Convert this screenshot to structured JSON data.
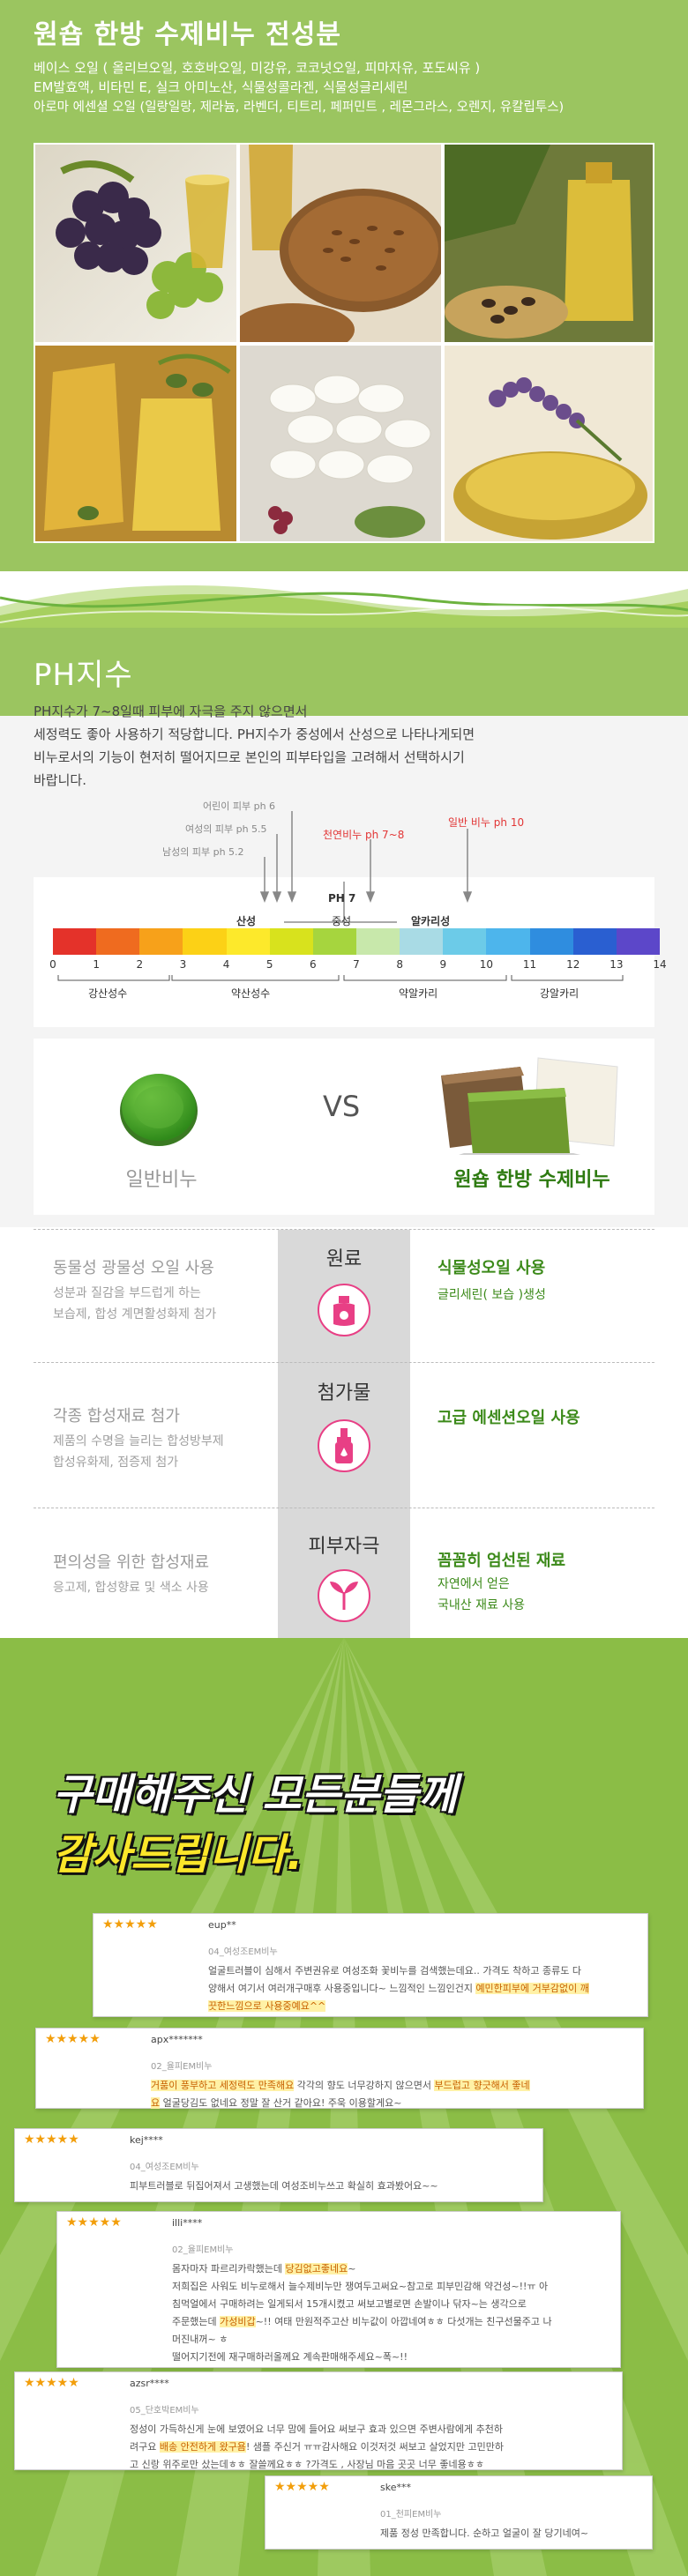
{
  "ingredients": {
    "title": "원숍 한방 수제비누 전성분",
    "lines": [
      "베이스 오일 ( 올리브오일, 호호바오일, 미강유, 코코넛오일, 피마자유,  포도씨유 )",
      "EM발효액, 비타민 E, 실크 아미노산, 식물성콜라겐, 식물성글리세린",
      "아로마 에센셜 오일 (일랑일랑, 제라늄, 라벤더, 티트리, 페퍼민트 , 레몬그라스, 오렌지, 유칼립투스)"
    ],
    "photos": [
      "grape-oil-photo",
      "flaxseed-oil-photo",
      "castor-oil-photo",
      "olive-oil-photo",
      "silk-cocoon-photo",
      "lavender-oil-photo"
    ]
  },
  "ph": {
    "title": "PH지수",
    "desc": [
      "PH지수가 7~8일때 피부에 자극을 주지 않으면서",
      "세정력도 좋아 사용하기 적당합니다. PH지수가 중성에서 산성으로 나타나게되면",
      "비누로서의 기능이 현저히 떨어지므로  본인의 피부타입을 고려해서 선택하시기",
      "바랍니다."
    ],
    "markers": {
      "child": "어린이 피부 ph 6",
      "female": "여성의 피부 ph 5.5",
      "male": "남성의 피부 ph 5.2",
      "natural": "천연비누 ph 7~8",
      "general": "일반 비누 ph 10"
    },
    "scale_labels": {
      "acid": "산성",
      "ph7": "PH 7",
      "neutral": "중성",
      "alkaline": "알카리성"
    },
    "ticks": [
      "0",
      "1",
      "2",
      "3",
      "4",
      "5",
      "6",
      "7",
      "8",
      "9",
      "10",
      "11",
      "12",
      "13",
      "14"
    ],
    "categories": [
      "강산성수",
      "약산성수",
      "약알카리",
      "강알카리"
    ],
    "scale_colors": [
      "#e4322a",
      "#ef6b1f",
      "#f7a11a",
      "#fcd116",
      "#fde92b",
      "#d8e21d",
      "#a6d53e",
      "#c8e8ab",
      "#a9dbe5",
      "#6ccbe8",
      "#4db5ec",
      "#2f8ddf",
      "#2a5fd1",
      "#5c47c9"
    ]
  },
  "vs": {
    "left": "일반비누",
    "mid": "VS",
    "right": "원숍 한방 수제비누"
  },
  "compare": [
    {
      "category": "원료",
      "icon": "cosmetic-bottle-icon",
      "left_title": "동물성 광물성 오일 사용",
      "left_desc": [
        "성분과 질감을 부드럽게 하는",
        "보습제, 합성 계면활성화제 첨가"
      ],
      "right_title": "식물성오일 사용",
      "right_desc": [
        "글리세린( 보습 )생성"
      ]
    },
    {
      "category": "첨가물",
      "icon": "dropper-bottle-icon",
      "left_title": "각종 합성재료 첨가",
      "left_desc": [
        "제품의 수명을 늘리는 합성방부제",
        "합성유화제, 점증제 첨가"
      ],
      "right_title": "고급 에센션오일 사용",
      "right_desc": []
    },
    {
      "category": "피부자극",
      "icon": "leaf-icon",
      "left_title": "편의성을 위한 합성재료",
      "left_desc": [
        "응고제, 합성향료 및 색소 사용"
      ],
      "right_title": "꼼꼼히 엄선된 재료",
      "right_desc": [
        "자연에서 얻은",
        "국내산 재료 사용"
      ]
    }
  ],
  "thanks": {
    "line1": "구매해주신 모든분들께",
    "line2": "감사드립니다."
  },
  "reviews": [
    {
      "stars": "★★★★★",
      "user": "eup**",
      "product": "04_여성조EM비누",
      "lines": [
        {
          "t": "얼굴트러블이 심해서 주변권유로 여성조화 꽃비누를 검색했는데요.. 가격도 착하고 종류도 다"
        },
        {
          "t": "양해서 여기서 여러개구매후 사용중입니다~ 느낌적인 느낌인건지 ",
          "h": "예민한피부에 거부감없이 깨"
        },
        {
          "t": "",
          "h": "끗한느낌으로 사용중예요^^"
        }
      ]
    },
    {
      "stars": "★★★★★",
      "user": "apx*******",
      "product": "02_율피EM비누",
      "lines": [
        {
          "h": "거품이 풍부하고 세정력도 만족해요",
          "t": " 각각의 향도 너무강하지 않으면서 ",
          "h2": "부드럽고 향긋해서 좋네"
        },
        {
          "h": "요",
          "t": " 얼굴당김도 없네요 정말 잘 산거 같아요! 주욱 이용할게요~"
        }
      ]
    },
    {
      "stars": "★★★★★",
      "user": "kej****",
      "product": "04_여성조EM비누",
      "lines": [
        {
          "t": "피부트러블로 뒤집어져서 고생했는데 여성조비누쓰고 확실히 효과봤어요~~"
        }
      ]
    },
    {
      "stars": "★★★★★",
      "user": "illi****",
      "product": "02_율피EM비누",
      "lines": [
        {
          "t": "몸자마자 파르리카락했는데 ",
          "h": "당김없고좋네요",
          "t2": "~"
        },
        {
          "t": "저희집은 사워도 비누로해서 늘수제비누만 쟁여두고써요~참고로 피부민감해 약건성~!!ㅠ 아"
        },
        {
          "t": "침먹얼에서 구매하려는 일게되서 15개시켰고 써보고별로면 손발이나 닦자~는 생각으로"
        },
        {
          "t": "주문했는데 ",
          "h": "가성비갑",
          "t2": "~!! 여태 만원적주고산 비누값이 아깝네여ㅎㅎ 다섯개는 친구선물주고 나"
        },
        {
          "t": "머진내꺼~ ㅎ"
        },
        {
          "t": "떨어지기전에 재구매하러올께요 계속판매해주세요~폭~!!"
        }
      ]
    },
    {
      "stars": "★★★★★",
      "user": "azsr****",
      "product": "05_단호박EM비누",
      "lines": [
        {
          "t": "정성이 가득하신게 눈에 보였어요 너무 맘에 들어요 써보구 효과 있으면 주변사람에게 추천하"
        },
        {
          "t": "려구요 ",
          "h": "배송 안전하게 왔구욤",
          "t2": "! 샘플 주신거 ㅠㅠ감사해요 이것저것 써보고 살었지만 고민만하"
        },
        {
          "t": "고 신랑 위주로만 샀는데ㅎㅎ 잘쓸께요ㅎㅎ ?가격도 , 사장님 마음 곳곳 너무 좋네용ㅎㅎ"
        }
      ]
    },
    {
      "stars": "★★★★★",
      "user": "ske***",
      "product": "01_천피EM비누",
      "lines": [
        {
          "t": "제품 정성 만족합니다. 순하고 얼굴이 잘 당기네여~"
        }
      ]
    }
  ]
}
